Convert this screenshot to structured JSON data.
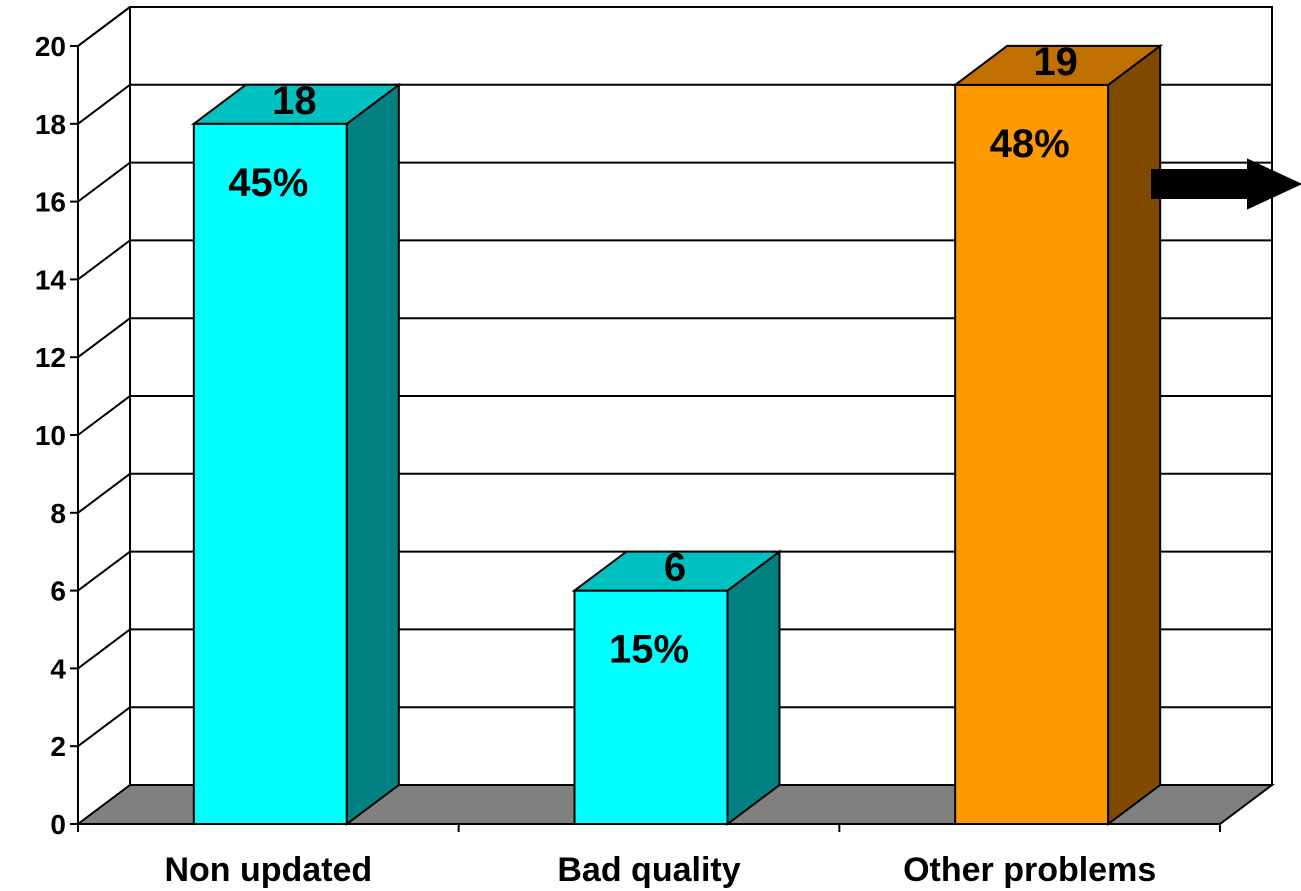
{
  "chart_data": {
    "type": "bar",
    "title": "",
    "xlabel": "",
    "ylabel": "",
    "ylim": [
      0,
      20
    ],
    "yticks": [
      "0",
      "2",
      "4",
      "6",
      "8",
      "10",
      "12",
      "14",
      "16",
      "18",
      "20"
    ],
    "grid": true,
    "categories": [
      "Non updated",
      "Bad quality",
      "Other problems"
    ],
    "values": [
      18,
      6,
      19
    ],
    "value_labels": [
      "18",
      "6",
      "19"
    ],
    "percent_labels": [
      "45%",
      "15%",
      "48%"
    ],
    "bar_colors": [
      {
        "front": "#00ffff",
        "top": "#00c0c0",
        "side": "#008080"
      },
      {
        "front": "#00ffff",
        "top": "#00c0c0",
        "side": "#008080"
      },
      {
        "front": "#ff9900",
        "top": "#c07000",
        "side": "#7f4a00"
      }
    ],
    "floor_color": "#808080",
    "arrow_icon": "right-arrow-icon"
  }
}
